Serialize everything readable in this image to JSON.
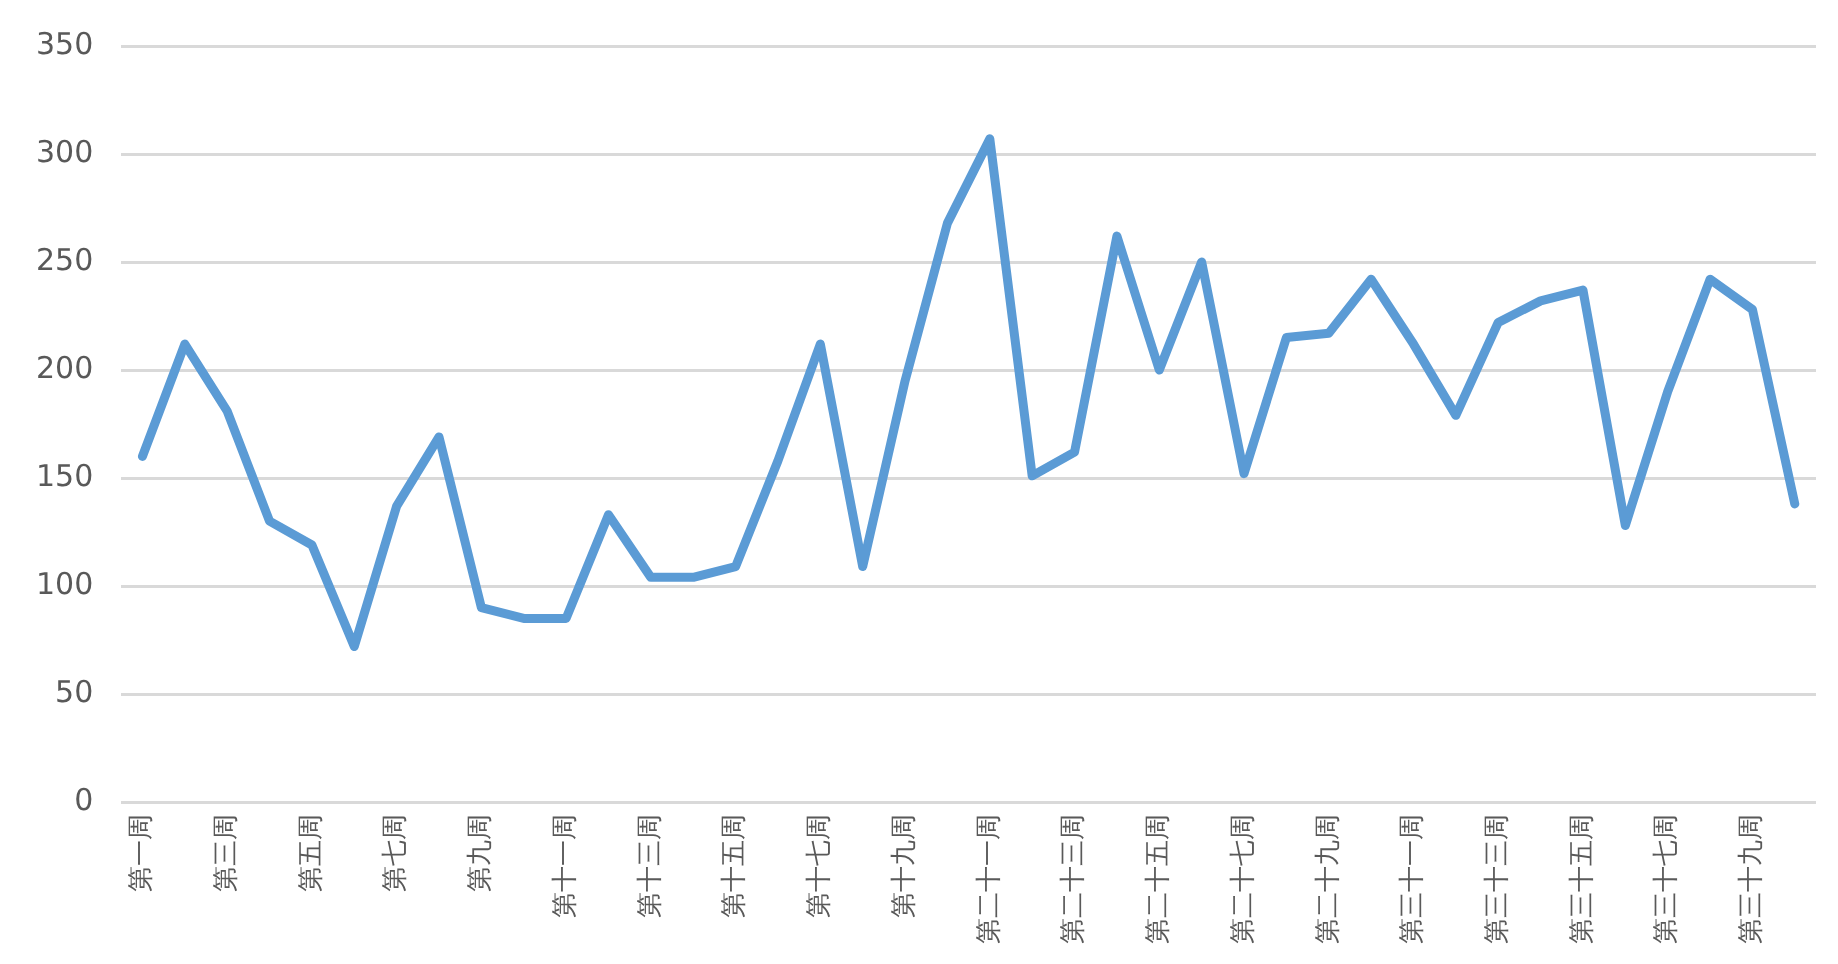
{
  "chart_data": {
    "type": "line",
    "categories": [
      "第一周",
      null,
      "第三周",
      null,
      "第五周",
      null,
      "第七周",
      null,
      "第九周",
      null,
      "第十一周",
      null,
      "第十三周",
      null,
      "第十五周",
      null,
      "第十七周",
      null,
      "第十九周",
      null,
      "第二十一周",
      null,
      "第二十三周",
      null,
      "第二十五周",
      null,
      "第二十七周",
      null,
      "第二十九周",
      null,
      "第三十一周",
      null,
      "第三十三周",
      null,
      "第三十五周",
      null,
      "第三十七周",
      null,
      "第三十九周",
      null
    ],
    "series": [
      {
        "color": "#5b9bd5",
        "values": [
          160,
          212,
          181,
          130,
          119,
          72,
          137,
          169,
          90,
          85,
          85,
          133,
          104,
          104,
          109,
          158,
          212,
          109,
          195,
          268,
          307,
          151,
          162,
          262,
          200,
          250,
          152,
          215,
          217,
          242,
          212,
          179,
          222,
          232,
          237,
          128,
          190,
          242,
          228,
          138
        ]
      }
    ],
    "ylim": [
      0,
      350
    ],
    "yticks": [
      0,
      50,
      100,
      150,
      200,
      250,
      300,
      350
    ],
    "grid": "y",
    "legend": false,
    "marker": "none",
    "line_style": "solid"
  }
}
